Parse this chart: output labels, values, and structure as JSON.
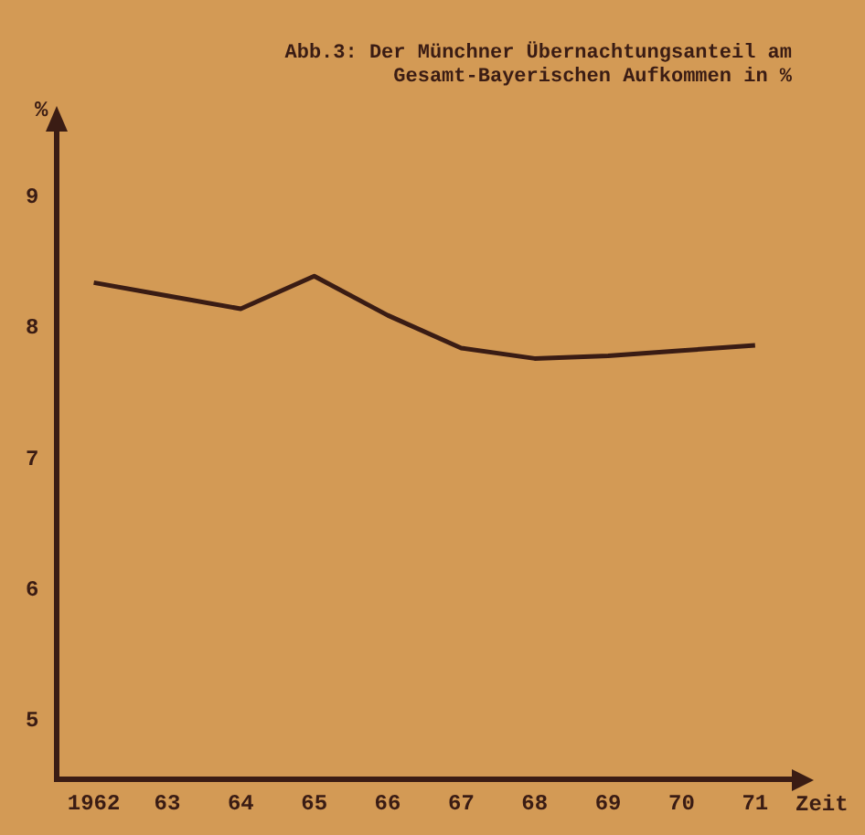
{
  "chart_data": {
    "type": "line",
    "title": "Abb.3: Der Münchner Übernachtungsanteil am\nGesamt-Bayerischen Aufkommen in %",
    "xlabel": "Zeit",
    "ylabel": "%",
    "categories": [
      "1962",
      "63",
      "64",
      "65",
      "66",
      "67",
      "68",
      "69",
      "70",
      "71"
    ],
    "series": [
      {
        "color": "#3a1c14",
        "values": [
          8.35,
          8.25,
          8.15,
          8.4,
          8.1,
          7.85,
          7.77,
          7.79,
          7.83,
          7.87
        ]
      }
    ],
    "ylim": [
      4.55,
      9.5
    ],
    "yticks": [
      5,
      6,
      7,
      8,
      9
    ],
    "grid": false,
    "legend": false,
    "marker": "none",
    "line_style": "solid"
  }
}
